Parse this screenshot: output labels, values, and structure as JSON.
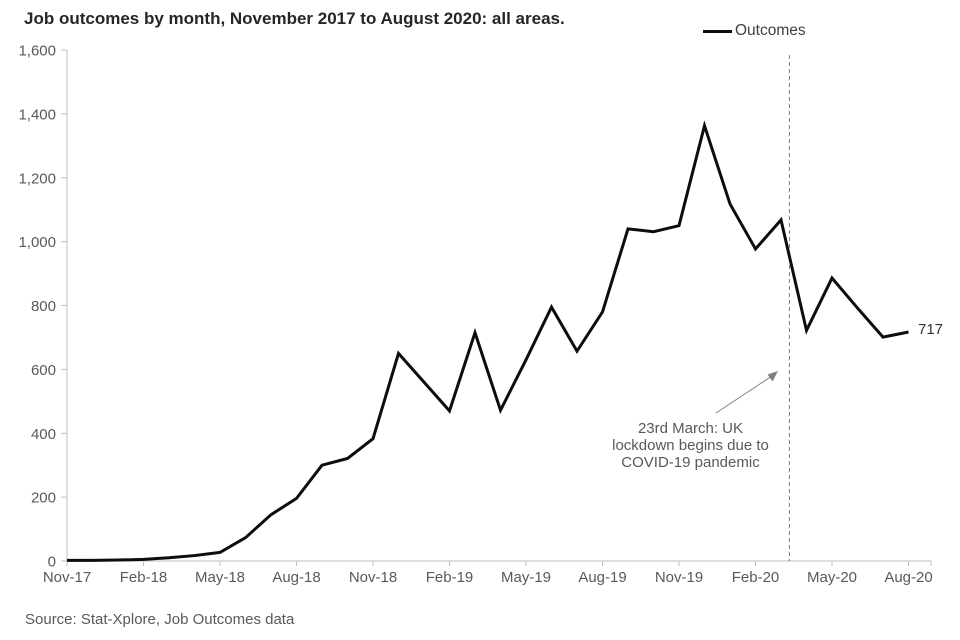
{
  "source_note": "Source: Stat-Xplore, Job Outcomes data",
  "colors": {
    "line": "#0d0d0d",
    "axis": "#bfbfbf",
    "tick_label": "#595959",
    "title": "#262626",
    "annotation_text": "#595959",
    "dashed_line": "#808080",
    "arrow": "#7f7f7f"
  },
  "chart_data": {
    "type": "line",
    "title": "Job outcomes by month, November 2017 to August 2020: all areas.",
    "xlabel": "",
    "ylabel": "",
    "ylim": [
      0,
      1600
    ],
    "grid": false,
    "legend_position": "top-right",
    "y_tick_labels": [
      "0",
      "200",
      "400",
      "600",
      "800",
      "1,000",
      "1,200",
      "1,400",
      "1,600"
    ],
    "x_tick_labels": [
      "Nov-17",
      "Feb-18",
      "May-18",
      "Aug-18",
      "Nov-18",
      "Feb-19",
      "May-19",
      "Aug-19",
      "Nov-19",
      "Feb-20",
      "May-20",
      "Aug-20"
    ],
    "months": [
      "Nov-17",
      "Dec-17",
      "Jan-18",
      "Feb-18",
      "Mar-18",
      "Apr-18",
      "May-18",
      "Jun-18",
      "Jul-18",
      "Aug-18",
      "Sep-18",
      "Oct-18",
      "Nov-18",
      "Dec-18",
      "Jan-19",
      "Feb-19",
      "Mar-19",
      "Apr-19",
      "May-19",
      "Jun-19",
      "Jul-19",
      "Aug-19",
      "Sep-19",
      "Oct-19",
      "Nov-19",
      "Dec-19",
      "Jan-20",
      "Feb-20",
      "Mar-20",
      "Apr-20",
      "May-20",
      "Jun-20",
      "Jul-20",
      "Aug-20"
    ],
    "series": [
      {
        "name": "Outcomes",
        "values": [
          2,
          2,
          3,
          5,
          10,
          17,
          27,
          73,
          145,
          196,
          300,
          321,
          383,
          650,
          560,
          470,
          715,
          472,
          630,
          795,
          657,
          780,
          1040,
          1031,
          1050,
          1363,
          1118,
          977,
          1068,
          722,
          886,
          792,
          701,
          717
        ]
      }
    ],
    "end_label": "717",
    "annotation_lines": [
      "23rd March: UK",
      "lockdown begins due to",
      "COVID-19 pandemic"
    ],
    "annotation_event_month": "Mar-20"
  }
}
